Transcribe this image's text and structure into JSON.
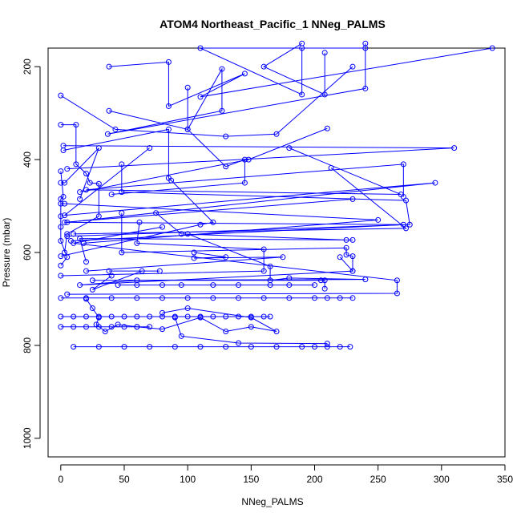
{
  "chart_data": {
    "type": "scatter",
    "title": "ATOM4 Northeast_Pacific_1 NNeg_PALMS",
    "xlabel": "NNeg_PALMS",
    "ylabel": "Pressure (mbar)",
    "xlim": [
      -10,
      350
    ],
    "ylim": [
      1040,
      160
    ],
    "y_inverted": true,
    "grid": false,
    "xticks": [
      0,
      50,
      100,
      150,
      200,
      250,
      300,
      350
    ],
    "yticks": [
      200,
      400,
      600,
      800,
      1000
    ],
    "point_style": "open-circle",
    "color": "#0000ff",
    "series": [
      {
        "points": [
          [
            190,
            160
          ],
          [
            190,
            260
          ],
          [
            110,
            160
          ],
          [
            240,
            160
          ]
        ]
      },
      {
        "points": [
          [
            208,
            170
          ],
          [
            208,
            260
          ],
          [
            160,
            200
          ],
          [
            190,
            150
          ]
        ]
      },
      {
        "points": [
          [
            38,
            200
          ],
          [
            85,
            190
          ],
          [
            85,
            285
          ],
          [
            145,
            215
          ],
          [
            110,
            265
          ],
          [
            340,
            160
          ]
        ]
      },
      {
        "points": [
          [
            100,
            245
          ],
          [
            100,
            335
          ],
          [
            127,
            205
          ],
          [
            127,
            295
          ],
          [
            37,
            345
          ],
          [
            240,
            247
          ],
          [
            240,
            150
          ]
        ]
      },
      {
        "points": [
          [
            0,
            262
          ],
          [
            43,
            335
          ],
          [
            130,
            350
          ],
          [
            170,
            345
          ],
          [
            230,
            200
          ]
        ]
      },
      {
        "points": [
          [
            0,
            325
          ],
          [
            12,
            325
          ],
          [
            12,
            410
          ],
          [
            20,
            430
          ],
          [
            23,
            450
          ],
          [
            30,
            452
          ],
          [
            30,
            522
          ],
          [
            5,
            560
          ],
          [
            3,
            600
          ]
        ]
      },
      {
        "points": [
          [
            2,
            380
          ],
          [
            85,
            335
          ],
          [
            85,
            440
          ],
          [
            87,
            445
          ],
          [
            120,
            535
          ],
          [
            110,
            540
          ],
          [
            0,
            608
          ]
        ]
      },
      {
        "points": [
          [
            38,
            295
          ],
          [
            100,
            335
          ],
          [
            130,
            415
          ],
          [
            145,
            400
          ],
          [
            145,
            450
          ],
          [
            40,
            475
          ]
        ]
      },
      {
        "points": [
          [
            2,
            370
          ],
          [
            310,
            375
          ],
          [
            5,
            420
          ]
        ]
      },
      {
        "points": [
          [
            210,
            333
          ],
          [
            148,
            400
          ],
          [
            15,
            470
          ]
        ]
      },
      {
        "points": [
          [
            180,
            375
          ],
          [
            268,
            475
          ],
          [
            20,
            465
          ],
          [
            270,
            410
          ],
          [
            270,
            480
          ]
        ]
      },
      {
        "points": [
          [
            0,
            450
          ],
          [
            3,
            450
          ],
          [
            30,
            375
          ],
          [
            15,
            485
          ]
        ]
      },
      {
        "points": [
          [
            0,
            425
          ],
          [
            2,
            480
          ],
          [
            0,
            485
          ],
          [
            0,
            522
          ],
          [
            0,
            545
          ],
          [
            0,
            575
          ],
          [
            5,
            610
          ],
          [
            0,
            628
          ]
        ]
      },
      {
        "points": [
          [
            70,
            375
          ],
          [
            3,
            520
          ],
          [
            295,
            450
          ],
          [
            5,
            535
          ]
        ]
      },
      {
        "points": [
          [
            48,
            410
          ],
          [
            48,
            470
          ],
          [
            272,
            488
          ],
          [
            275,
            540
          ],
          [
            5,
            565
          ]
        ]
      },
      {
        "points": [
          [
            213,
            418
          ],
          [
            272,
            548
          ],
          [
            10,
            560
          ]
        ]
      },
      {
        "points": [
          [
            0,
            495
          ],
          [
            3,
            495
          ],
          [
            250,
            530
          ],
          [
            18,
            580
          ]
        ]
      },
      {
        "points": [
          [
            230,
            485
          ],
          [
            3,
            535
          ],
          [
            270,
            540
          ],
          [
            8,
            575
          ]
        ]
      },
      {
        "points": [
          [
            48,
            515
          ],
          [
            48,
            600
          ],
          [
            225,
            590
          ],
          [
            225,
            605
          ],
          [
            230,
            608
          ],
          [
            230,
            640
          ]
        ]
      },
      {
        "points": [
          [
            75,
            515
          ],
          [
            95,
            560
          ],
          [
            225,
            573
          ],
          [
            230,
            573
          ],
          [
            15,
            570
          ],
          [
            20,
            620
          ]
        ]
      },
      {
        "points": [
          [
            62,
            535
          ],
          [
            60,
            580
          ],
          [
            160,
            593
          ],
          [
            160,
            640
          ],
          [
            0,
            650
          ]
        ]
      },
      {
        "points": [
          [
            80,
            545
          ],
          [
            10,
            580
          ],
          [
            265,
            660
          ],
          [
            265,
            688
          ],
          [
            5,
            690
          ]
        ]
      },
      {
        "points": [
          [
            100,
            560
          ],
          [
            165,
            630
          ],
          [
            165,
            660
          ],
          [
            180,
            655
          ],
          [
            240,
            658
          ],
          [
            25,
            660
          ]
        ]
      },
      {
        "points": [
          [
            105,
            600
          ],
          [
            130,
            610
          ],
          [
            105,
            612
          ],
          [
            175,
            610
          ],
          [
            20,
            640
          ]
        ]
      },
      {
        "points": [
          [
            220,
            610
          ],
          [
            230,
            640
          ],
          [
            15,
            670
          ],
          [
            60,
            660
          ],
          [
            205,
            660
          ],
          [
            208,
            660
          ],
          [
            208,
            678
          ]
        ]
      },
      {
        "points": [
          [
            38,
            640
          ],
          [
            78,
            640
          ],
          [
            64,
            640
          ],
          [
            25,
            680
          ],
          [
            40,
            650
          ]
        ]
      },
      {
        "points": [
          [
            45,
            670
          ],
          [
            60,
            670
          ],
          [
            80,
            670
          ],
          [
            95,
            670
          ],
          [
            120,
            670
          ],
          [
            140,
            670
          ],
          [
            165,
            670
          ],
          [
            180,
            670
          ],
          [
            200,
            670
          ]
        ]
      },
      {
        "points": [
          [
            0,
            698
          ],
          [
            20,
            698
          ],
          [
            40,
            698
          ],
          [
            60,
            698
          ],
          [
            80,
            698
          ],
          [
            100,
            698
          ],
          [
            120,
            698
          ],
          [
            140,
            698
          ],
          [
            160,
            698
          ],
          [
            180,
            698
          ],
          [
            200,
            698
          ],
          [
            210,
            698
          ],
          [
            220,
            698
          ],
          [
            230,
            698
          ]
        ]
      },
      {
        "points": [
          [
            0,
            738
          ],
          [
            10,
            738
          ],
          [
            20,
            738
          ],
          [
            30,
            738
          ],
          [
            40,
            738
          ],
          [
            50,
            738
          ],
          [
            60,
            738
          ],
          [
            70,
            738
          ],
          [
            80,
            738
          ],
          [
            90,
            738
          ],
          [
            100,
            738
          ],
          [
            110,
            738
          ],
          [
            120,
            738
          ],
          [
            130,
            738
          ],
          [
            140,
            738
          ],
          [
            150,
            738
          ],
          [
            160,
            738
          ],
          [
            165,
            738
          ]
        ]
      },
      {
        "points": [
          [
            0,
            760
          ],
          [
            10,
            760
          ],
          [
            20,
            760
          ],
          [
            30,
            760
          ],
          [
            40,
            760
          ],
          [
            50,
            760
          ],
          [
            60,
            760
          ],
          [
            70,
            760
          ]
        ]
      },
      {
        "points": [
          [
            10,
            803
          ],
          [
            30,
            803
          ],
          [
            50,
            803
          ],
          [
            70,
            803
          ],
          [
            90,
            803
          ],
          [
            110,
            803
          ],
          [
            130,
            803
          ],
          [
            150,
            803
          ],
          [
            170,
            803
          ],
          [
            190,
            803
          ],
          [
            200,
            803
          ],
          [
            210,
            803
          ],
          [
            220,
            803
          ],
          [
            228,
            803
          ]
        ]
      },
      {
        "points": [
          [
            20,
            700
          ],
          [
            25,
            720
          ],
          [
            30,
            740
          ],
          [
            28,
            755
          ],
          [
            35,
            770
          ],
          [
            45,
            755
          ],
          [
            60,
            760
          ],
          [
            80,
            765
          ],
          [
            110,
            740
          ],
          [
            130,
            770
          ],
          [
            150,
            760
          ],
          [
            170,
            770
          ],
          [
            150,
            740
          ],
          [
            100,
            720
          ],
          [
            80,
            730
          ]
        ]
      },
      {
        "points": [
          [
            90,
            740
          ],
          [
            95,
            780
          ],
          [
            140,
            795
          ],
          [
            210,
            796
          ]
        ]
      }
    ]
  }
}
